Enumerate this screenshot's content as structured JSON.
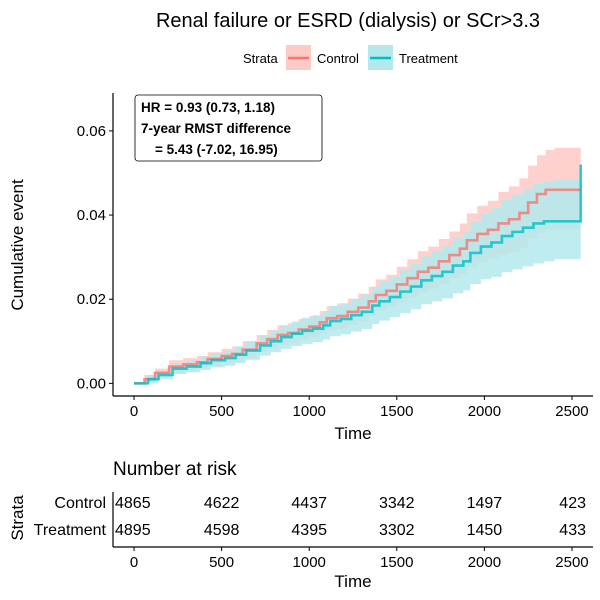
{
  "chart_data": [
    {
      "type": "line",
      "title": "Renal failure or ESRD (dialysis) or SCr>3.3",
      "xlabel": "Time",
      "ylabel": "Cumulative event",
      "xlim": [
        -120,
        2620
      ],
      "ylim": [
        -0.003,
        0.069
      ],
      "x_ticks": [
        0,
        500,
        1000,
        1500,
        2000,
        2500
      ],
      "x_tick_labels": [
        "0",
        "500",
        "1000",
        "1500",
        "2000",
        "2500"
      ],
      "y_ticks": [
        0,
        0.02,
        0.04,
        0.06
      ],
      "y_tick_labels": [
        "0.00",
        "0.02",
        "0.04",
        "0.06"
      ],
      "grid": false,
      "legend": {
        "title": "Strata",
        "position": "top",
        "entries": [
          "Control",
          "Treatment"
        ]
      },
      "annotation": {
        "lines": [
          "HR = 0.93 (0.73, 1.18)",
          "7-year RMST difference",
          "= 5.43 (-7.02, 16.95)"
        ],
        "x": 30,
        "y": 0.0665
      },
      "series": [
        {
          "name": "Control",
          "color": "#F8766D",
          "fill": "#FFC9C6",
          "x": [
            0,
            60,
            120,
            200,
            280,
            360,
            420,
            500,
            560,
            620,
            700,
            760,
            820,
            880,
            940,
            1000,
            1060,
            1100,
            1160,
            1220,
            1280,
            1340,
            1380,
            1440,
            1500,
            1560,
            1620,
            1680,
            1740,
            1800,
            1860,
            1900,
            1960,
            2020,
            2080,
            2140,
            2200,
            2250,
            2300,
            2350,
            2400,
            2450,
            2550
          ],
          "y": [
            0,
            0.001,
            0.0025,
            0.004,
            0.0045,
            0.005,
            0.0058,
            0.0065,
            0.007,
            0.008,
            0.0095,
            0.0105,
            0.0115,
            0.012,
            0.0128,
            0.0135,
            0.0145,
            0.0155,
            0.016,
            0.017,
            0.018,
            0.0195,
            0.021,
            0.022,
            0.0235,
            0.025,
            0.0265,
            0.0275,
            0.029,
            0.0305,
            0.032,
            0.034,
            0.0355,
            0.0365,
            0.038,
            0.039,
            0.0405,
            0.043,
            0.045,
            0.046,
            0.046,
            0.046,
            0.046
          ],
          "lower": [
            0,
            0.0,
            0.0015,
            0.0025,
            0.003,
            0.0035,
            0.0042,
            0.0048,
            0.0052,
            0.006,
            0.0075,
            0.0083,
            0.0092,
            0.0097,
            0.0103,
            0.011,
            0.0118,
            0.0126,
            0.013,
            0.0139,
            0.0147,
            0.016,
            0.0173,
            0.0182,
            0.0193,
            0.0205,
            0.0216,
            0.0225,
            0.0237,
            0.0249,
            0.026,
            0.0276,
            0.0288,
            0.0296,
            0.0305,
            0.0312,
            0.0323,
            0.0343,
            0.0358,
            0.0365,
            0.0365,
            0.0365,
            0.0365
          ],
          "upper": [
            0,
            0.002,
            0.0035,
            0.0055,
            0.006,
            0.0065,
            0.0074,
            0.0082,
            0.0088,
            0.01,
            0.0115,
            0.0127,
            0.0138,
            0.0143,
            0.0153,
            0.016,
            0.0172,
            0.0184,
            0.019,
            0.0201,
            0.0213,
            0.023,
            0.0247,
            0.0258,
            0.0277,
            0.0295,
            0.0314,
            0.0325,
            0.0343,
            0.0361,
            0.038,
            0.0404,
            0.0422,
            0.0434,
            0.0455,
            0.0468,
            0.0487,
            0.0517,
            0.0542,
            0.0555,
            0.056,
            0.056,
            0.056
          ]
        },
        {
          "name": "Treatment",
          "color": "#00BFC4",
          "fill": "#B3E9EC",
          "x": [
            0,
            80,
            140,
            220,
            300,
            380,
            440,
            520,
            580,
            640,
            720,
            780,
            840,
            900,
            960,
            1020,
            1080,
            1120,
            1180,
            1240,
            1300,
            1360,
            1400,
            1460,
            1520,
            1580,
            1640,
            1700,
            1760,
            1820,
            1880,
            1920,
            1980,
            2040,
            2100,
            2160,
            2220,
            2280,
            2340,
            2400,
            2460,
            2550
          ],
          "y": [
            0,
            0.001,
            0.002,
            0.0035,
            0.004,
            0.0048,
            0.0055,
            0.006,
            0.0068,
            0.0078,
            0.009,
            0.01,
            0.011,
            0.0118,
            0.0125,
            0.013,
            0.0138,
            0.0148,
            0.0153,
            0.0162,
            0.017,
            0.0185,
            0.0195,
            0.0205,
            0.0218,
            0.023,
            0.0245,
            0.0255,
            0.0265,
            0.028,
            0.029,
            0.031,
            0.0325,
            0.0335,
            0.035,
            0.036,
            0.037,
            0.038,
            0.0385,
            0.0385,
            0.0385,
            0.052
          ],
          "lower": [
            0,
            0.0,
            0.001,
            0.0022,
            0.0026,
            0.0032,
            0.0038,
            0.0042,
            0.0048,
            0.0056,
            0.0066,
            0.0074,
            0.0082,
            0.0089,
            0.0094,
            0.0098,
            0.0104,
            0.0112,
            0.0116,
            0.0123,
            0.0129,
            0.0141,
            0.0149,
            0.0157,
            0.0167,
            0.0176,
            0.0188,
            0.0195,
            0.0202,
            0.0214,
            0.0221,
            0.0236,
            0.0247,
            0.0253,
            0.0264,
            0.0271,
            0.0278,
            0.0285,
            0.029,
            0.0295,
            0.0295,
            0.0295
          ],
          "upper": [
            0,
            0.002,
            0.003,
            0.0048,
            0.0054,
            0.0064,
            0.0072,
            0.0078,
            0.0088,
            0.01,
            0.0114,
            0.0126,
            0.0138,
            0.0147,
            0.0156,
            0.0162,
            0.0172,
            0.0184,
            0.019,
            0.0201,
            0.0211,
            0.0229,
            0.0241,
            0.0253,
            0.0269,
            0.0284,
            0.0302,
            0.0315,
            0.0328,
            0.0346,
            0.0359,
            0.0384,
            0.0403,
            0.0417,
            0.0436,
            0.0449,
            0.0462,
            0.0475,
            0.0481,
            0.0485,
            0.0485,
            0.052
          ]
        }
      ]
    },
    {
      "type": "table",
      "title": "Number at risk",
      "xlabel": "Time",
      "ylabel": "Strata",
      "xlim": [
        -120,
        2620
      ],
      "x_ticks": [
        0,
        500,
        1000,
        1500,
        2000,
        2500
      ],
      "x_tick_labels": [
        "0",
        "500",
        "1000",
        "1500",
        "2000",
        "2500"
      ],
      "rows": [
        {
          "name": "Control",
          "color": "#F8766D",
          "values": [
            "4865",
            "4622",
            "4437",
            "3342",
            "1497",
            "423"
          ]
        },
        {
          "name": "Treatment",
          "color": "#00BFC4",
          "values": [
            "4895",
            "4598",
            "4395",
            "3302",
            "1450",
            "433"
          ]
        }
      ]
    }
  ]
}
